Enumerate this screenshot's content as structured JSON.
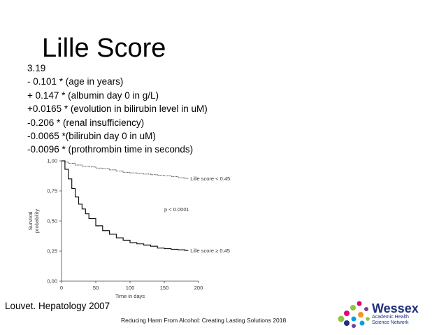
{
  "slide": {
    "title": "Lille Score",
    "formula_lines": [
      "3.19",
      "- 0.101 * (age in years)",
      "+ 0.147 * (albumin day 0 in g/L)",
      "+0.0165 * (evolution in bilirubin level in uM)",
      "-0.206 * (renal insufficiency)",
      "-0.0065 *(bilirubin day 0 in uM)",
      "-0.0096 * (prothrombin time in seconds)"
    ],
    "citation": "Louvet. Hepatology 2007",
    "footer": "Reducing Harm From Alcohol: Creating Lasting Solutions 2018",
    "logo": {
      "name": "Wessex",
      "subtitle_line1": "Academic Health",
      "subtitle_line2": "Science Network",
      "colors": [
        "#1f2f7a",
        "#e6007e",
        "#8dc63f",
        "#f7941d",
        "#00a0df",
        "#7b3f98"
      ]
    }
  },
  "chart_data": {
    "type": "line",
    "xlabel": "Time in days",
    "ylabel": "Survival probability",
    "xlim": [
      0,
      200
    ],
    "ylim": [
      0,
      1
    ],
    "x_ticks": [
      "0",
      "50",
      "100",
      "150",
      "200"
    ],
    "y_ticks": [
      "0,00",
      "0,25",
      "0,50",
      "0,75",
      "1,00"
    ],
    "annotation": "p < 0.0001",
    "series": [
      {
        "name": "Lille score < 0.45",
        "x": [
          0,
          5,
          10,
          20,
          30,
          40,
          50,
          60,
          70,
          80,
          90,
          100,
          110,
          120,
          130,
          140,
          150,
          160,
          170,
          180,
          185
        ],
        "y": [
          1.0,
          0.99,
          0.98,
          0.965,
          0.955,
          0.95,
          0.94,
          0.935,
          0.925,
          0.915,
          0.905,
          0.9,
          0.895,
          0.89,
          0.885,
          0.88,
          0.875,
          0.87,
          0.86,
          0.855,
          0.855
        ]
      },
      {
        "name": "Lille score ≥ 0.45",
        "x": [
          0,
          5,
          10,
          15,
          20,
          25,
          30,
          35,
          40,
          50,
          60,
          70,
          80,
          90,
          100,
          110,
          120,
          130,
          140,
          150,
          160,
          170,
          180,
          185
        ],
        "y": [
          1.0,
          0.93,
          0.85,
          0.77,
          0.7,
          0.64,
          0.6,
          0.56,
          0.52,
          0.46,
          0.42,
          0.39,
          0.36,
          0.34,
          0.32,
          0.31,
          0.3,
          0.29,
          0.275,
          0.27,
          0.265,
          0.26,
          0.255,
          0.255
        ]
      }
    ]
  }
}
